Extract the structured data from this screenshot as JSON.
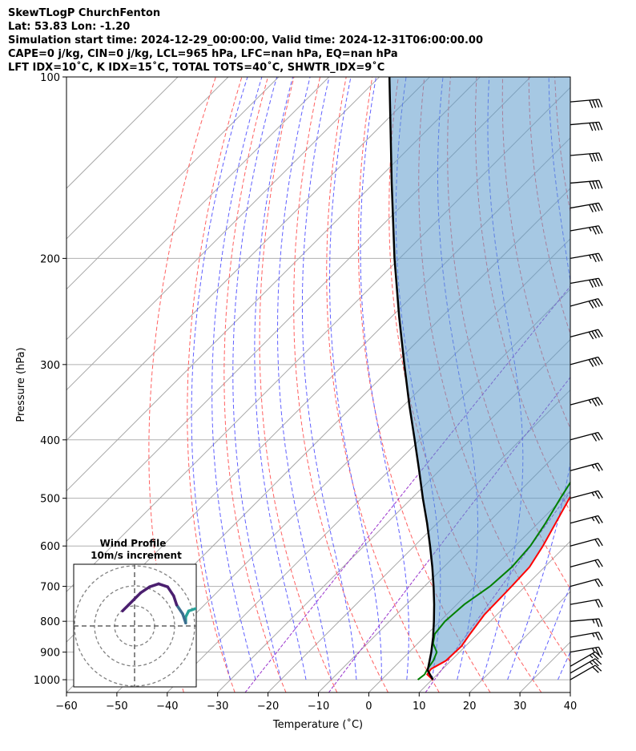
{
  "header": {
    "line1": "SkewTLogP ChurchFenton",
    "line2": "Lat: 53.83   Lon: -1.20",
    "line3": "Simulation start time: 2024-12-29_00:00:00, Valid time: 2024-12-31T06:00:00.00",
    "line4": "CAPE=0 j/kg, CIN=0 j/kg, LCL=965 hPa, LFC=nan hPa, EQ=nan hPa",
    "line5": "LFT IDX=10˚C, K IDX=15˚C, TOTAL TOTS=40˚C, SHWTR_IDX=9˚C"
  },
  "chart_data": {
    "type": "line",
    "xlabel": "Temperature (˚C)",
    "ylabel": "Pressure (hPa)",
    "xlim": [
      -60,
      40
    ],
    "ylim": [
      1050,
      100
    ],
    "x_ticks": [
      "−60",
      "−50",
      "−40",
      "−30",
      "−20",
      "−10",
      "0",
      "10",
      "20",
      "30",
      "40"
    ],
    "x_tick_values": [
      -60,
      -50,
      -40,
      -30,
      -20,
      -10,
      0,
      10,
      20,
      30,
      40
    ],
    "y_ticks": [
      "1000",
      "900",
      "800",
      "700",
      "600",
      "500",
      "400",
      "300",
      "200",
      "100"
    ],
    "y_tick_values": [
      1000,
      900,
      800,
      700,
      600,
      500,
      400,
      300,
      200,
      100
    ],
    "y_scale": "log",
    "skewed_isotherms": true,
    "grid": true,
    "series": [
      {
        "role": "temperature",
        "color": "#ff0000",
        "points": [
          [
            1000,
            10.2
          ],
          [
            980,
            8.0
          ],
          [
            960,
            7.7
          ],
          [
            930,
            9.0
          ],
          [
            880,
            9.2
          ],
          [
            840,
            8.5
          ],
          [
            780,
            7.5
          ],
          [
            700,
            7.3
          ],
          [
            650,
            7.0
          ],
          [
            600,
            5.5
          ],
          [
            550,
            3.5
          ],
          [
            500,
            1.3
          ],
          [
            450,
            -0.5
          ],
          [
            400,
            -3.0
          ],
          [
            350,
            -6.0
          ],
          [
            300,
            -9.0
          ],
          [
            260,
            -12.0
          ],
          [
            230,
            -16.0
          ],
          [
            205,
            -19.5
          ],
          [
            190,
            -22.5
          ],
          [
            180,
            -22.5
          ],
          [
            170,
            -21.5
          ],
          [
            160,
            -18.5
          ],
          [
            150,
            -16.5
          ],
          [
            140,
            -13.5
          ],
          [
            130,
            -11.5
          ],
          [
            120,
            -9.2
          ],
          [
            110,
            -7.0
          ],
          [
            105,
            -4.5
          ],
          [
            100,
            -2.5
          ]
        ]
      },
      {
        "role": "dewpoint",
        "color": "#008000",
        "points": [
          [
            1000,
            7.2
          ],
          [
            980,
            7.5
          ],
          [
            960,
            7.0
          ],
          [
            930,
            6.5
          ],
          [
            900,
            5.5
          ],
          [
            870,
            3.0
          ],
          [
            840,
            1.5
          ],
          [
            800,
            1.0
          ],
          [
            750,
            1.5
          ],
          [
            700,
            3.0
          ],
          [
            650,
            3.5
          ],
          [
            600,
            3.0
          ],
          [
            550,
            1.5
          ],
          [
            500,
            -0.5
          ],
          [
            450,
            -2.5
          ],
          [
            400,
            -5.5
          ],
          [
            350,
            -8.5
          ],
          [
            300,
            -12.0
          ],
          [
            260,
            -16.0
          ],
          [
            230,
            -20.0
          ],
          [
            205,
            -23.5
          ],
          [
            190,
            -26.5
          ],
          [
            180,
            -27.5
          ],
          [
            170,
            -27.0
          ],
          [
            160,
            -25.0
          ],
          [
            150,
            -23.0
          ],
          [
            140,
            -22.0
          ],
          [
            130,
            -21.0
          ],
          [
            120,
            -20.5
          ],
          [
            110,
            -16.0
          ],
          [
            100,
            -11.0
          ]
        ]
      },
      {
        "role": "parcel",
        "color": "#000000",
        "points": [
          [
            1000,
            10.2
          ],
          [
            965,
            7.3
          ],
          [
            900,
            4.4
          ],
          [
            850,
            1.8
          ],
          [
            800,
            -1.2
          ],
          [
            750,
            -4.5
          ],
          [
            700,
            -8.2
          ],
          [
            650,
            -12.3
          ],
          [
            600,
            -16.9
          ],
          [
            550,
            -22.0
          ],
          [
            500,
            -27.8
          ],
          [
            450,
            -34.0
          ],
          [
            400,
            -41.0
          ],
          [
            350,
            -49.0
          ],
          [
            300,
            -58.0
          ],
          [
            250,
            -68.5
          ],
          [
            200,
            -81.0
          ],
          [
            150,
            -96.5
          ],
          [
            100,
            -118.0
          ]
        ]
      }
    ],
    "wind_barbs": [
      {
        "p": 1000,
        "speed_kt": 20,
        "dir_deg": 240
      },
      {
        "p": 975,
        "speed_kt": 25,
        "dir_deg": 240
      },
      {
        "p": 950,
        "speed_kt": 25,
        "dir_deg": 240
      },
      {
        "p": 900,
        "speed_kt": 25,
        "dir_deg": 260
      },
      {
        "p": 850,
        "speed_kt": 25,
        "dir_deg": 260
      },
      {
        "p": 800,
        "speed_kt": 25,
        "dir_deg": 265
      },
      {
        "p": 750,
        "speed_kt": 20,
        "dir_deg": 260
      },
      {
        "p": 700,
        "speed_kt": 20,
        "dir_deg": 255
      },
      {
        "p": 650,
        "speed_kt": 20,
        "dir_deg": 255
      },
      {
        "p": 600,
        "speed_kt": 20,
        "dir_deg": 255
      },
      {
        "p": 550,
        "speed_kt": 25,
        "dir_deg": 255
      },
      {
        "p": 500,
        "speed_kt": 25,
        "dir_deg": 255
      },
      {
        "p": 450,
        "speed_kt": 25,
        "dir_deg": 255
      },
      {
        "p": 400,
        "speed_kt": 30,
        "dir_deg": 255
      },
      {
        "p": 350,
        "speed_kt": 35,
        "dir_deg": 255
      },
      {
        "p": 300,
        "speed_kt": 40,
        "dir_deg": 255
      },
      {
        "p": 270,
        "speed_kt": 40,
        "dir_deg": 255
      },
      {
        "p": 240,
        "speed_kt": 40,
        "dir_deg": 255
      },
      {
        "p": 220,
        "speed_kt": 40,
        "dir_deg": 260
      },
      {
        "p": 200,
        "speed_kt": 35,
        "dir_deg": 260
      },
      {
        "p": 180,
        "speed_kt": 35,
        "dir_deg": 260
      },
      {
        "p": 165,
        "speed_kt": 40,
        "dir_deg": 260
      },
      {
        "p": 150,
        "speed_kt": 40,
        "dir_deg": 265
      },
      {
        "p": 135,
        "speed_kt": 40,
        "dir_deg": 265
      },
      {
        "p": 120,
        "speed_kt": 40,
        "dir_deg": 265
      },
      {
        "p": 110,
        "speed_kt": 40,
        "dir_deg": 265
      }
    ],
    "hodograph": {
      "title": "Wind Profile",
      "subtitle": "10m/s increment",
      "points": [
        [
          12.0,
          3.5
        ],
        [
          10.5,
          3.0
        ],
        [
          9.0,
          2.5
        ],
        [
          8.5,
          1.5
        ],
        [
          8.5,
          0.5
        ],
        [
          8.0,
          2.0
        ],
        [
          7.0,
          3.5
        ],
        [
          6.5,
          5.0
        ],
        [
          5.5,
          6.5
        ],
        [
          4.0,
          7.0
        ],
        [
          2.5,
          6.5
        ],
        [
          1.0,
          5.5
        ],
        [
          0.0,
          4.5
        ],
        [
          -1.0,
          3.5
        ],
        [
          -2.0,
          2.5
        ]
      ]
    }
  }
}
